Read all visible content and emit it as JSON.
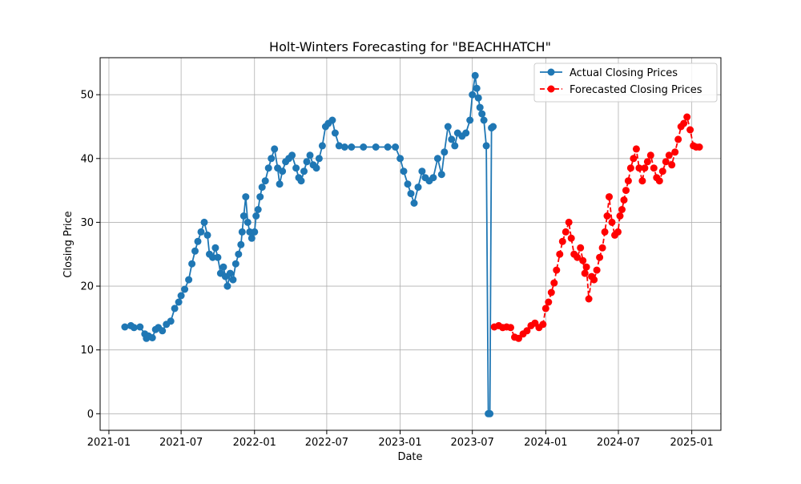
{
  "chart_data": {
    "type": "line",
    "title": "Holt-Winters Forecasting for \"BEACHHATCH\"",
    "xlabel": "Date",
    "ylabel": "Closing Price",
    "x_axis_type": "date",
    "xlim": [
      "2020-12-10",
      "2025-03-15"
    ],
    "ylim": [
      -2.6,
      55.8
    ],
    "grid": true,
    "legend_position": "top-right",
    "x_ticks": [
      "2021-01",
      "2021-07",
      "2022-01",
      "2022-07",
      "2023-01",
      "2023-07",
      "2024-01",
      "2024-07",
      "2025-01"
    ],
    "y_ticks": [
      0,
      10,
      20,
      30,
      40,
      50
    ],
    "series": [
      {
        "name": "Actual Closing Prices",
        "color": "#1f77b4",
        "line_style": "solid",
        "marker": "circle",
        "x": [
          "2021-02-10",
          "2021-02-25",
          "2021-03-05",
          "2021-03-20",
          "2021-04-01",
          "2021-04-05",
          "2021-04-10",
          "2021-04-20",
          "2021-04-28",
          "2021-05-05",
          "2021-05-15",
          "2021-05-25",
          "2021-06-05",
          "2021-06-15",
          "2021-06-25",
          "2021-07-01",
          "2021-07-10",
          "2021-07-20",
          "2021-07-28",
          "2021-08-05",
          "2021-08-12",
          "2021-08-20",
          "2021-08-28",
          "2021-09-05",
          "2021-09-10",
          "2021-09-18",
          "2021-09-25",
          "2021-10-01",
          "2021-10-08",
          "2021-10-15",
          "2021-10-20",
          "2021-10-25",
          "2021-11-01",
          "2021-11-08",
          "2021-11-15",
          "2021-11-22",
          "2021-11-28",
          "2021-12-01",
          "2021-12-05",
          "2021-12-10",
          "2021-12-15",
          "2021-12-20",
          "2021-12-25",
          "2022-01-01",
          "2022-01-05",
          "2022-01-10",
          "2022-01-15",
          "2022-01-20",
          "2022-01-28",
          "2022-02-05",
          "2022-02-12",
          "2022-02-20",
          "2022-02-28",
          "2022-03-05",
          "2022-03-12",
          "2022-03-20",
          "2022-03-28",
          "2022-04-05",
          "2022-04-15",
          "2022-04-22",
          "2022-04-28",
          "2022-05-05",
          "2022-05-12",
          "2022-05-20",
          "2022-05-28",
          "2022-06-05",
          "2022-06-12",
          "2022-06-20",
          "2022-06-28",
          "2022-07-05",
          "2022-07-15",
          "2022-07-22",
          "2022-08-01",
          "2022-08-15",
          "2022-09-01",
          "2022-10-01",
          "2022-11-01",
          "2022-12-01",
          "2022-12-20",
          "2023-01-01",
          "2023-01-10",
          "2023-01-20",
          "2023-01-28",
          "2023-02-05",
          "2023-02-15",
          "2023-02-25",
          "2023-03-05",
          "2023-03-15",
          "2023-03-25",
          "2023-04-05",
          "2023-04-15",
          "2023-04-22",
          "2023-05-01",
          "2023-05-10",
          "2023-05-18",
          "2023-05-25",
          "2023-06-05",
          "2023-06-15",
          "2023-06-25",
          "2023-07-01",
          "2023-07-08",
          "2023-07-12",
          "2023-07-16",
          "2023-07-20",
          "2023-07-25",
          "2023-07-30",
          "2023-08-05",
          "2023-08-10",
          "2023-08-14",
          "2023-08-18",
          "2023-08-22"
        ],
        "y": [
          13.6,
          13.8,
          13.5,
          13.6,
          12.5,
          11.8,
          12.2,
          11.9,
          13.2,
          13.5,
          13.0,
          14.0,
          14.5,
          16.5,
          17.5,
          18.5,
          19.5,
          21.0,
          23.5,
          25.5,
          27.0,
          28.5,
          30.0,
          28.0,
          25.0,
          24.5,
          26.0,
          24.5,
          22.0,
          23.0,
          21.5,
          20.0,
          22.0,
          21.0,
          23.5,
          25.0,
          26.5,
          28.5,
          31.0,
          34.0,
          30.0,
          28.5,
          27.5,
          28.5,
          31.0,
          32.0,
          34.0,
          35.5,
          36.5,
          38.5,
          40.0,
          41.5,
          38.5,
          36.0,
          38.0,
          39.5,
          40.0,
          40.5,
          38.5,
          37.0,
          36.5,
          38.0,
          39.5,
          40.5,
          39.0,
          38.5,
          40.0,
          42.0,
          45.0,
          45.5,
          46.0,
          44.0,
          42.0,
          41.8,
          41.8,
          41.8,
          41.8,
          41.8,
          41.8,
          40.0,
          38.0,
          36.0,
          34.5,
          33.0,
          35.5,
          38.0,
          37.0,
          36.5,
          37.0,
          40.0,
          37.5,
          41.0,
          45.0,
          43.0,
          42.0,
          44.0,
          43.5,
          44.0,
          46.0,
          50.0,
          53.0,
          51.0,
          49.5,
          48.0,
          47.0,
          46.0,
          42.0,
          0.0,
          0.0,
          44.8,
          45.0
        ]
      },
      {
        "name": "Forecasted Closing Prices",
        "color": "#ff0000",
        "line_style": "dashed",
        "marker": "circle",
        "x": [
          "2023-08-25",
          "2023-09-05",
          "2023-09-15",
          "2023-09-25",
          "2023-10-05",
          "2023-10-15",
          "2023-10-25",
          "2023-11-05",
          "2023-11-15",
          "2023-11-25",
          "2023-12-05",
          "2023-12-15",
          "2023-12-25",
          "2024-01-01",
          "2024-01-08",
          "2024-01-15",
          "2024-01-22",
          "2024-01-28",
          "2024-02-05",
          "2024-02-12",
          "2024-02-20",
          "2024-02-28",
          "2024-03-05",
          "2024-03-12",
          "2024-03-20",
          "2024-03-28",
          "2024-04-03",
          "2024-04-08",
          "2024-04-12",
          "2024-04-18",
          "2024-04-25",
          "2024-05-01",
          "2024-05-08",
          "2024-05-15",
          "2024-05-22",
          "2024-05-28",
          "2024-06-03",
          "2024-06-08",
          "2024-06-15",
          "2024-06-22",
          "2024-06-30",
          "2024-07-05",
          "2024-07-10",
          "2024-07-15",
          "2024-07-20",
          "2024-07-26",
          "2024-08-01",
          "2024-08-08",
          "2024-08-15",
          "2024-08-22",
          "2024-08-30",
          "2024-09-05",
          "2024-09-12",
          "2024-09-20",
          "2024-09-28",
          "2024-10-05",
          "2024-10-12",
          "2024-10-20",
          "2024-10-28",
          "2024-11-05",
          "2024-11-12",
          "2024-11-20",
          "2024-11-28",
          "2024-12-05",
          "2024-12-12",
          "2024-12-20",
          "2024-12-28",
          "2025-01-05",
          "2025-01-12",
          "2025-01-20"
        ],
        "y": [
          13.6,
          13.8,
          13.5,
          13.6,
          13.5,
          12.0,
          11.8,
          12.5,
          13.0,
          13.8,
          14.2,
          13.5,
          14.0,
          16.5,
          17.5,
          19.0,
          20.5,
          22.5,
          25.0,
          27.0,
          28.5,
          30.0,
          27.5,
          25.0,
          24.5,
          26.0,
          24.0,
          22.0,
          23.0,
          18.0,
          21.5,
          21.0,
          22.5,
          24.5,
          26.0,
          28.5,
          31.0,
          34.0,
          30.0,
          28.0,
          28.5,
          31.0,
          32.0,
          33.5,
          35.0,
          36.5,
          38.5,
          40.0,
          41.5,
          38.5,
          36.5,
          38.5,
          39.5,
          40.5,
          38.5,
          37.0,
          36.5,
          38.0,
          39.5,
          40.5,
          39.0,
          41.0,
          43.0,
          45.0,
          45.5,
          46.5,
          44.5,
          42.0,
          41.8,
          41.8
        ]
      }
    ]
  }
}
